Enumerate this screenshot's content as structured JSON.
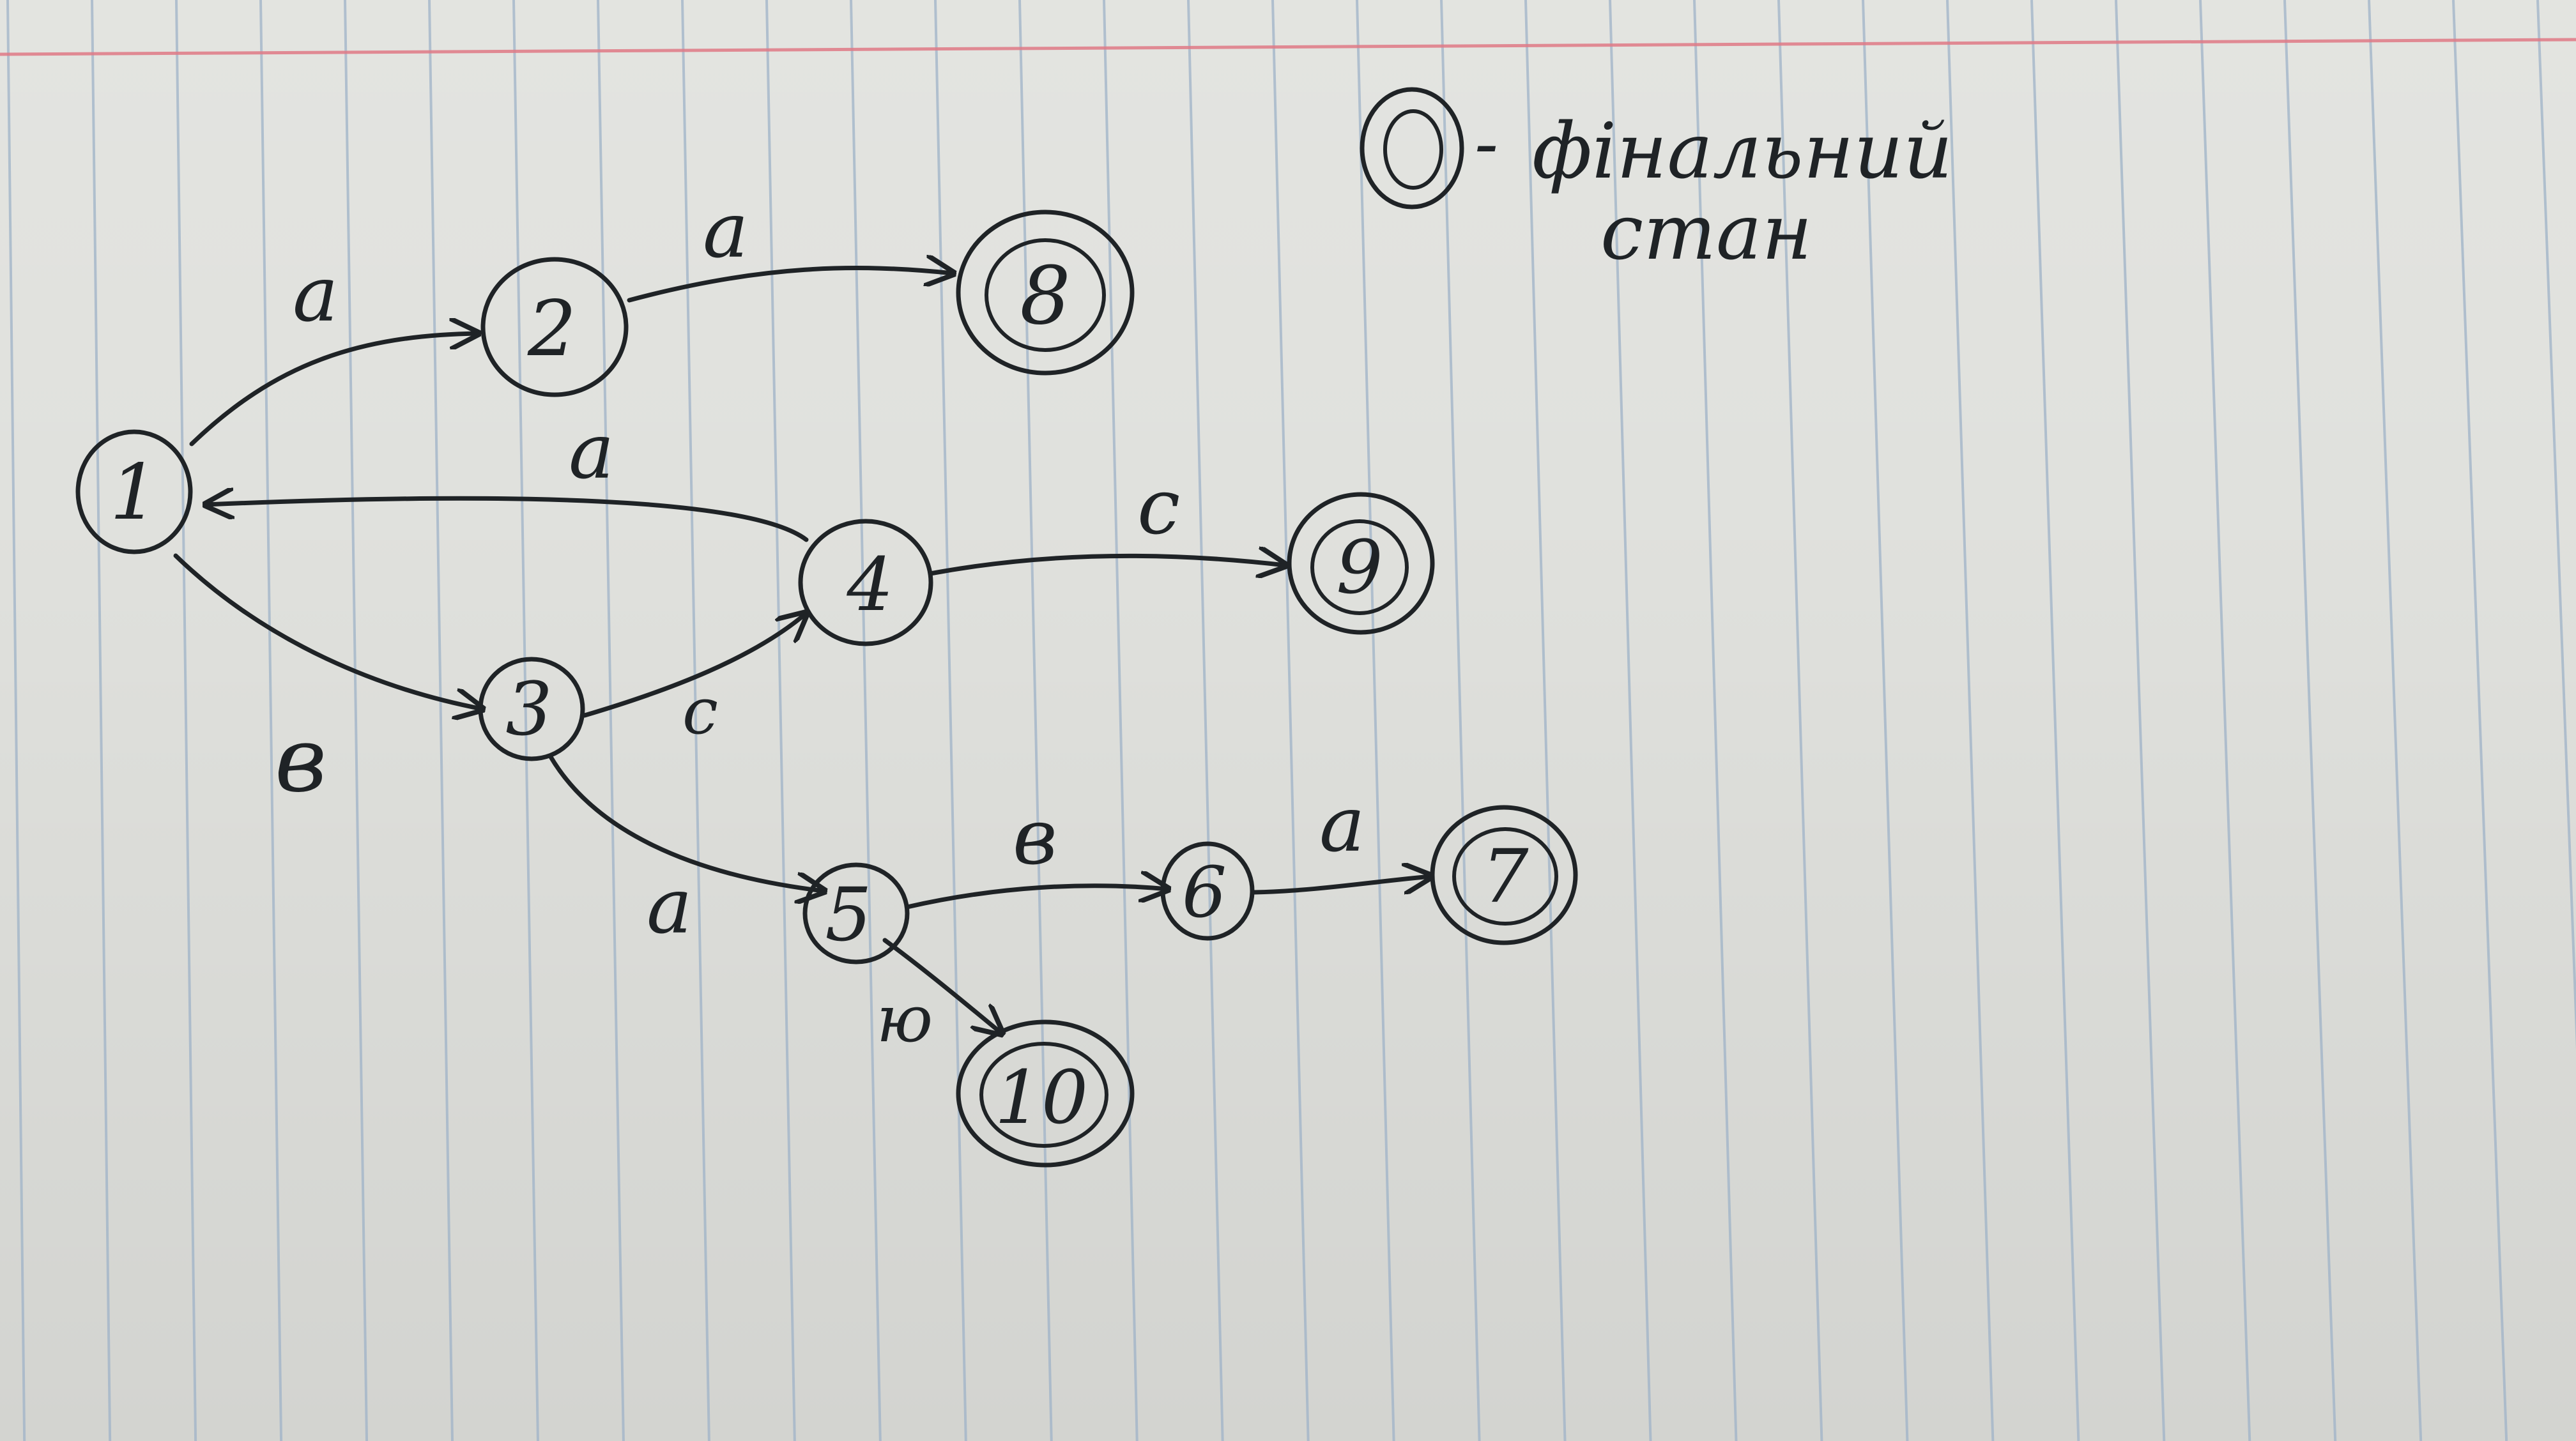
{
  "diagram": {
    "type": "state-transition-graph",
    "legend": {
      "prefix": "-",
      "line1": "фінальний",
      "line2": "стан"
    },
    "states": [
      {
        "id": "1",
        "label": "1",
        "final": false
      },
      {
        "id": "2",
        "label": "2",
        "final": false
      },
      {
        "id": "3",
        "label": "3",
        "final": false
      },
      {
        "id": "4",
        "label": "4",
        "final": false
      },
      {
        "id": "5",
        "label": "5",
        "final": false
      },
      {
        "id": "6",
        "label": "6",
        "final": false
      },
      {
        "id": "7",
        "label": "7",
        "final": true
      },
      {
        "id": "8",
        "label": "8",
        "final": true
      },
      {
        "id": "9",
        "label": "9",
        "final": true
      },
      {
        "id": "10",
        "label": "10",
        "final": true
      }
    ],
    "transitions": [
      {
        "from": "1",
        "to": "2",
        "label": "a"
      },
      {
        "from": "2",
        "to": "8",
        "label": "a"
      },
      {
        "from": "4",
        "to": "1",
        "label": "a"
      },
      {
        "from": "1",
        "to": "3",
        "label": "в"
      },
      {
        "from": "3",
        "to": "4",
        "label": "c"
      },
      {
        "from": "4",
        "to": "9",
        "label": "c"
      },
      {
        "from": "3",
        "to": "5",
        "label": "a"
      },
      {
        "from": "5",
        "to": "6",
        "label": "в"
      },
      {
        "from": "6",
        "to": "7",
        "label": "a"
      },
      {
        "from": "5",
        "to": "10",
        "label": "ю"
      }
    ],
    "colors": {
      "ink": "#1f2326",
      "paper": "#e0e1dd",
      "grid_line": "#9fb3c8",
      "margin_line": "#e07a86"
    }
  }
}
